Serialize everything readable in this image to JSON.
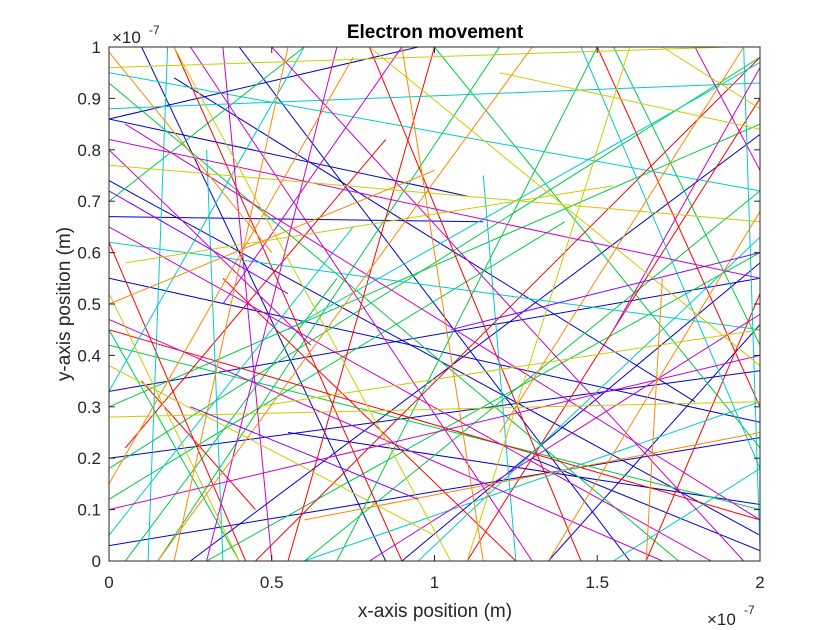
{
  "chart_data": {
    "type": "line",
    "title": "Electron movement",
    "xlabel": "x-axis position (m)",
    "ylabel": "y-axis position (m)",
    "xlim": [
      0,
      2
    ],
    "ylim": [
      0,
      1
    ],
    "x_ticks": [
      "0",
      "0.5",
      "1",
      "1.5",
      "2"
    ],
    "y_ticks": [
      "0",
      "0.1",
      "0.2",
      "0.3",
      "0.4",
      "0.5",
      "0.6",
      "0.7",
      "0.8",
      "0.9",
      "1"
    ],
    "x_exponent": {
      "base": "×10",
      "power": "-7"
    },
    "y_exponent": {
      "base": "×10",
      "power": "-7"
    },
    "grid": false,
    "colors": [
      "#0000cc",
      "#00cc44",
      "#ff0000",
      "#00cccc",
      "#cc00cc",
      "#cccc00",
      "#ff8800",
      "#8800ff"
    ],
    "series": [
      {
        "color": "#0000cc",
        "segments": [
          [
            [
              0,
              0.86
            ],
            [
              0.95,
              1.0
            ]
          ],
          [
            [
              0,
              0.67
            ],
            [
              1.15,
              0.66
            ]
          ],
          [
            [
              0,
              0.55
            ],
            [
              2,
              0.27
            ]
          ],
          [
            [
              0,
              0.33
            ],
            [
              2,
              0.55
            ]
          ],
          [
            [
              0.1,
              1.0
            ],
            [
              0.85,
              0.0
            ]
          ],
          [
            [
              0.25,
              0.0
            ],
            [
              2,
              0.83
            ]
          ],
          [
            [
              0.55,
              0.25
            ],
            [
              2,
              0.11
            ]
          ],
          [
            [
              1.3,
              0.2
            ],
            [
              2,
              0.02
            ]
          ],
          [
            [
              0,
              0.2
            ],
            [
              2,
              0.37
            ]
          ],
          [
            [
              0.4,
              1.0
            ],
            [
              1.6,
              0.0
            ]
          ],
          [
            [
              0,
              0.74
            ],
            [
              2,
              0.05
            ]
          ],
          [
            [
              0.9,
              0.0
            ],
            [
              2,
              0.58
            ]
          ],
          [
            [
              1.35,
              0.0
            ],
            [
              2,
              0.46
            ]
          ],
          [
            [
              0,
              0.86
            ],
            [
              1.1,
              0.71
            ]
          ],
          [
            [
              0,
              0.03
            ],
            [
              2,
              0.24
            ]
          ],
          [
            [
              0.2,
              0.94
            ],
            [
              1.8,
              0.31
            ]
          ]
        ]
      },
      {
        "color": "#00cc44",
        "segments": [
          [
            [
              0,
              0.7
            ],
            [
              0.6,
              1.0
            ]
          ],
          [
            [
              0,
              0.18
            ],
            [
              2,
              0.98
            ]
          ],
          [
            [
              0.15,
              0.0
            ],
            [
              1.2,
              1.0
            ]
          ],
          [
            [
              0.6,
              0.0
            ],
            [
              2,
              0.72
            ]
          ],
          [
            [
              0,
              0.42
            ],
            [
              2,
              0.1
            ]
          ],
          [
            [
              0.4,
              0.0
            ],
            [
              0,
              0.45
            ]
          ],
          [
            [
              1.0,
              1.0
            ],
            [
              2,
              0.22
            ]
          ],
          [
            [
              0.3,
              0.0
            ],
            [
              2,
              0.6
            ]
          ],
          [
            [
              0,
              0.93
            ],
            [
              1.75,
              0.0
            ]
          ],
          [
            [
              0.7,
              0.0
            ],
            [
              1.5,
              1.0
            ]
          ],
          [
            [
              0,
              0.12
            ],
            [
              1.4,
              0.66
            ]
          ],
          [
            [
              1.55,
              1.0
            ],
            [
              2,
              0.42
            ]
          ],
          [
            [
              0.05,
              0.0
            ],
            [
              0.7,
              0.55
            ]
          ],
          [
            [
              0,
              0.3
            ],
            [
              2,
              0.85
            ]
          ]
        ]
      },
      {
        "color": "#ff0000",
        "segments": [
          [
            [
              0.2,
              1.0
            ],
            [
              0.9,
              0.0
            ]
          ],
          [
            [
              0.55,
              0.0
            ],
            [
              1.0,
              1.0
            ]
          ],
          [
            [
              0,
              0.62
            ],
            [
              0.42,
              0.0
            ]
          ],
          [
            [
              0.35,
              0.55
            ],
            [
              1.25,
              0.0
            ]
          ],
          [
            [
              0.8,
              1.0
            ],
            [
              1.45,
              0.0
            ]
          ],
          [
            [
              0.45,
              0.0
            ],
            [
              2,
              0.98
            ]
          ],
          [
            [
              1.5,
              1.0
            ],
            [
              2,
              0.3
            ]
          ],
          [
            [
              1.1,
              0.0
            ],
            [
              2,
              0.9
            ]
          ],
          [
            [
              0,
              0.45
            ],
            [
              2,
              0.08
            ]
          ],
          [
            [
              0.05,
              0.22
            ],
            [
              0.85,
              0.82
            ]
          ],
          [
            [
              0.1,
              0.35
            ],
            [
              0.45,
              0.1
            ]
          ],
          [
            [
              1.65,
              0.0
            ],
            [
              2,
              0.52
            ]
          ]
        ]
      },
      {
        "color": "#00cccc",
        "segments": [
          [
            [
              0.6,
              1.0
            ],
            [
              0,
              0.33
            ]
          ],
          [
            [
              0,
              0.95
            ],
            [
              2,
              0.72
            ]
          ],
          [
            [
              0.55,
              0.45
            ],
            [
              2,
              0.97
            ]
          ],
          [
            [
              1.15,
              0.75
            ],
            [
              1.25,
              0.0
            ]
          ],
          [
            [
              0.3,
              0.8
            ],
            [
              0.35,
              0.0
            ]
          ],
          [
            [
              1.95,
              1.0
            ],
            [
              2,
              0.02
            ]
          ],
          [
            [
              0.95,
              0.0
            ],
            [
              2,
              0.63
            ]
          ],
          [
            [
              0,
              0.05
            ],
            [
              0.75,
              0.65
            ]
          ],
          [
            [
              0,
              0.88
            ],
            [
              2,
              0.93
            ]
          ],
          [
            [
              1.55,
              0.0
            ],
            [
              2,
              0.18
            ]
          ],
          [
            [
              0.18,
              1.0
            ],
            [
              0.12,
              0.0
            ]
          ],
          [
            [
              1.45,
              1.0
            ],
            [
              2,
              0.18
            ]
          ],
          [
            [
              0.6,
              0.0
            ],
            [
              2,
              0.31
            ]
          ],
          [
            [
              0,
              0.62
            ],
            [
              2,
              0.45
            ]
          ]
        ]
      },
      {
        "color": "#cc00cc",
        "segments": [
          [
            [
              0,
              0.8
            ],
            [
              0.62,
              0.42
            ]
          ],
          [
            [
              0,
              0.82
            ],
            [
              2,
              0.55
            ]
          ],
          [
            [
              0.05,
              0.85
            ],
            [
              2,
              0.08
            ]
          ],
          [
            [
              0.35,
              1.0
            ],
            [
              0.5,
              0.0
            ]
          ],
          [
            [
              0.7,
              1.0
            ],
            [
              0.3,
              0.0
            ]
          ],
          [
            [
              1.55,
              0.45
            ],
            [
              2,
              0.96
            ]
          ],
          [
            [
              0,
              0.65
            ],
            [
              1.85,
              0.0
            ]
          ],
          [
            [
              0.8,
              0.0
            ],
            [
              2,
              0.48
            ]
          ],
          [
            [
              0.25,
              1.0
            ],
            [
              1.3,
              0.0
            ]
          ],
          [
            [
              1.8,
              1.0
            ],
            [
              2,
              0.76
            ]
          ],
          [
            [
              0,
              0.1
            ],
            [
              2,
              0.4
            ]
          ],
          [
            [
              0.35,
              0.5
            ],
            [
              0.9,
              1.0
            ]
          ],
          [
            [
              0.5,
              1.0
            ],
            [
              1.95,
              0.0
            ]
          ],
          [
            [
              0,
              0.47
            ],
            [
              1.7,
              0.0
            ]
          ]
        ]
      },
      {
        "color": "#cccc00",
        "segments": [
          [
            [
              0,
              0.77
            ],
            [
              2,
              0.66
            ]
          ],
          [
            [
              0,
              0.28
            ],
            [
              2,
              0.31
            ]
          ],
          [
            [
              1.7,
              1.0
            ],
            [
              2,
              0.88
            ]
          ],
          [
            [
              0.4,
              0.0
            ],
            [
              0.0,
              0.52
            ]
          ],
          [
            [
              0.8,
              1.0
            ],
            [
              2,
              0.38
            ]
          ],
          [
            [
              0,
              0.96
            ],
            [
              1.9,
              1.0
            ]
          ],
          [
            [
              1.1,
              0.0
            ],
            [
              1.6,
              1.0
            ]
          ],
          [
            [
              0.05,
              0.58
            ],
            [
              1.55,
              0.73
            ]
          ],
          [
            [
              0.45,
              0.3
            ],
            [
              2,
              0.45
            ]
          ],
          [
            [
              0.2,
              1.0
            ],
            [
              1.05,
              0.0
            ]
          ],
          [
            [
              1.2,
              0.95
            ],
            [
              2,
              0.84
            ]
          ],
          [
            [
              0,
              0.38
            ],
            [
              1.0,
              0.05
            ]
          ]
        ]
      },
      {
        "color": "#ff8800",
        "segments": [
          [
            [
              0,
              0.15
            ],
            [
              0.75,
              0.98
            ]
          ],
          [
            [
              0.55,
              1.0
            ],
            [
              0.2,
              0.0
            ]
          ],
          [
            [
              0.15,
              0.0
            ],
            [
              1.3,
              1.0
            ]
          ],
          [
            [
              1.7,
              0.55
            ],
            [
              1.65,
              0.0
            ]
          ],
          [
            [
              1.2,
              0.25
            ],
            [
              1.95,
              1.0
            ]
          ],
          [
            [
              0,
              0.5
            ],
            [
              1.0,
              0.76
            ]
          ],
          [
            [
              1.35,
              0.0
            ],
            [
              2,
              0.68
            ]
          ],
          [
            [
              0.9,
              1.0
            ],
            [
              1.15,
              0.0
            ]
          ],
          [
            [
              0.6,
              0.08
            ],
            [
              2,
              0.25
            ]
          ],
          [
            [
              0,
              0.99
            ],
            [
              0.5,
              0.6
            ]
          ]
        ]
      },
      {
        "color": "#8800ff",
        "segments": [
          [
            [
              0,
              0.72
            ],
            [
              0.55,
              0.52
            ]
          ],
          [
            [
              1.05,
              0.45
            ],
            [
              2,
              0.6
            ]
          ],
          [
            [
              0.25,
              0.3
            ],
            [
              0.95,
              0.12
            ]
          ]
        ]
      }
    ]
  }
}
